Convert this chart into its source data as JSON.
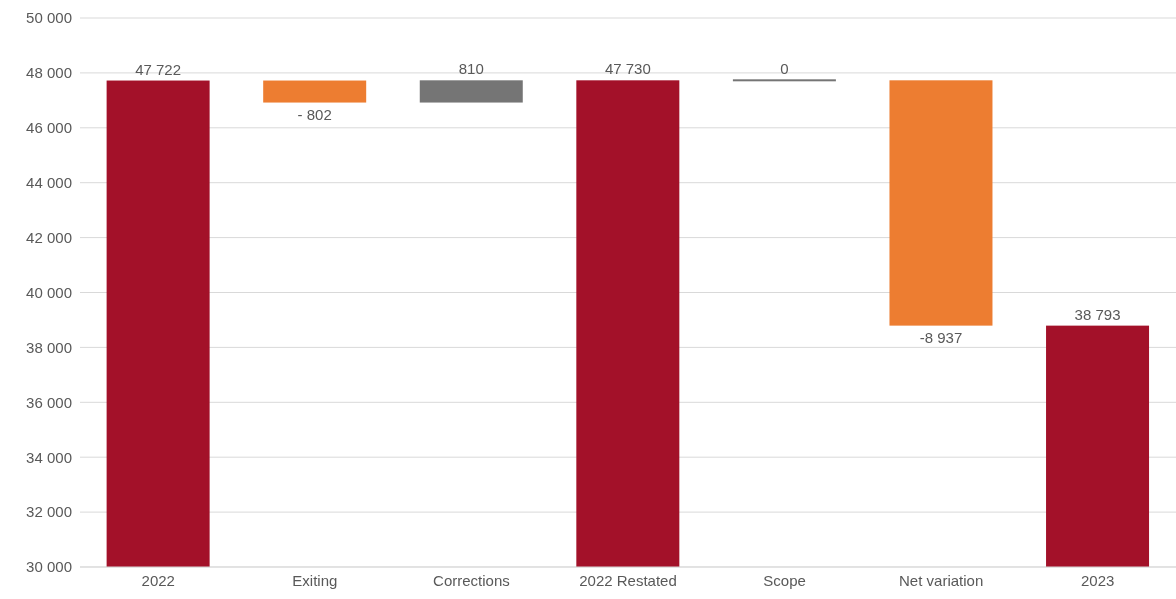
{
  "chart_data": {
    "type": "bar",
    "categories": [
      "2022",
      "Exiting",
      "Corrections",
      "2022 Restated",
      "Scope",
      "Net variation",
      "2023"
    ],
    "values": [
      47722,
      -802,
      810,
      47730,
      0,
      -8937,
      38793
    ],
    "base": [
      null,
      47722,
      46920,
      null,
      47730,
      47730,
      null
    ],
    "colors": [
      "#a31129",
      "#ed7d31",
      "#757575",
      "#a31129",
      "#757575",
      "#ed7d31",
      "#a31129"
    ],
    "value_labels": [
      "47 722",
      "- 802",
      "810",
      "47 730",
      "0",
      "-8 937",
      "38 793"
    ],
    "ylim": [
      30000,
      50000
    ],
    "yticks": [
      {
        "value": 30000,
        "label": "30 000"
      },
      {
        "value": 32000,
        "label": "32 000"
      },
      {
        "value": 34000,
        "label": "34 000"
      },
      {
        "value": 36000,
        "label": "36 000"
      },
      {
        "value": 38000,
        "label": "38 000"
      },
      {
        "value": 40000,
        "label": "40 000"
      },
      {
        "value": 42000,
        "label": "42 000"
      },
      {
        "value": 44000,
        "label": "44 000"
      },
      {
        "value": 46000,
        "label": "46 000"
      },
      {
        "value": 48000,
        "label": "48 000"
      },
      {
        "value": 50000,
        "label": "50 000"
      }
    ],
    "grid": "y"
  }
}
